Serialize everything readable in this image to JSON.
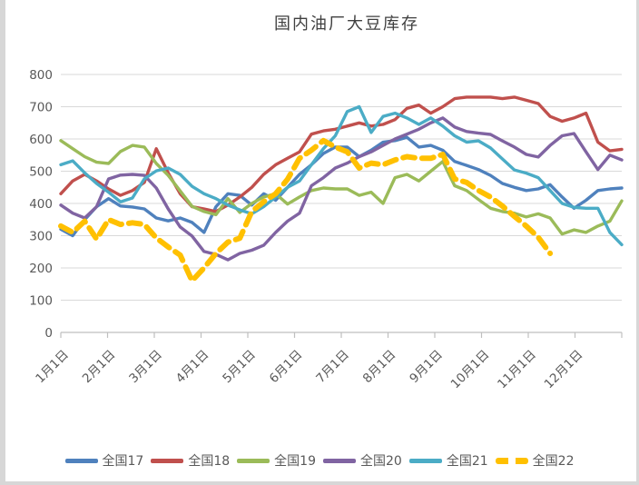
{
  "window": {
    "background": "#ffffff",
    "edge_color": "#d7d7d7"
  },
  "colors": {
    "title_text": "#3f3f3f",
    "axis_text": "#595959",
    "gridline": "#d9d9d9",
    "axis_line": "#bfbfbf"
  },
  "chart_data": {
    "type": "line",
    "title": "国内油厂大豆库存",
    "xlabel": "",
    "ylabel": "",
    "ylim": [
      0,
      800
    ],
    "y_ticks": [
      0,
      100,
      200,
      300,
      400,
      500,
      600,
      700,
      800
    ],
    "x_tick_labels": [
      "1月1日",
      "2月1日",
      "3月1日",
      "4月1日",
      "5月1日",
      "6月1日",
      "7月1日",
      "8月1日",
      "9月1日",
      "10月1日",
      "11月1日",
      "12月1日"
    ],
    "x_unit": "weekly points, 4 per month, Jan 1 to late Dec",
    "grid": "horizontal",
    "legend_position": "bottom",
    "series": [
      {
        "name": "全国17",
        "key": "17",
        "color": "#4f81bd",
        "style": "solid",
        "values": [
          320,
          300,
          350,
          390,
          415,
          392,
          389,
          383,
          355,
          346,
          355,
          341,
          310,
          390,
          430,
          425,
          395,
          430,
          410,
          450,
          490,
          520,
          555,
          575,
          575,
          545,
          565,
          590,
          595,
          605,
          575,
          580,
          565,
          530,
          518,
          505,
          487,
          462,
          450,
          440,
          445,
          458,
          420,
          385,
          410,
          440,
          445,
          448
        ]
      },
      {
        "name": "全国18",
        "key": "18",
        "color": "#c0504d",
        "style": "solid",
        "values": [
          430,
          470,
          490,
          470,
          445,
          425,
          440,
          465,
          570,
          495,
          430,
          390,
          383,
          375,
          395,
          420,
          450,
          490,
          520,
          540,
          560,
          615,
          625,
          630,
          640,
          650,
          640,
          645,
          660,
          695,
          705,
          680,
          700,
          725,
          730,
          730,
          730,
          725,
          730,
          720,
          710,
          670,
          655,
          665,
          680,
          590,
          563,
          568
        ]
      },
      {
        "name": "全国19",
        "key": "19",
        "color": "#9bbb59",
        "style": "solid",
        "values": [
          595,
          570,
          545,
          528,
          524,
          561,
          580,
          575,
          524,
          487,
          439,
          391,
          375,
          365,
          415,
          372,
          400,
          420,
          430,
          398,
          420,
          440,
          448,
          445,
          445,
          425,
          435,
          400,
          480,
          490,
          470,
          500,
          530,
          455,
          440,
          412,
          385,
          375,
          370,
          358,
          368,
          355,
          305,
          318,
          310,
          330,
          345,
          408
        ]
      },
      {
        "name": "全国20",
        "key": "20",
        "color": "#8064a2",
        "style": "solid",
        "values": [
          395,
          370,
          355,
          390,
          476,
          488,
          490,
          487,
          448,
          383,
          327,
          299,
          251,
          242,
          225,
          245,
          255,
          270,
          310,
          345,
          370,
          455,
          480,
          510,
          525,
          545,
          560,
          580,
          600,
          615,
          630,
          650,
          665,
          637,
          623,
          618,
          614,
          594,
          575,
          552,
          544,
          580,
          610,
          617,
          560,
          505,
          550,
          535
        ]
      },
      {
        "name": "全国21",
        "key": "21",
        "color": "#4bacc6",
        "style": "solid",
        "values": [
          520,
          532,
          495,
          462,
          435,
          405,
          417,
          476,
          501,
          510,
          490,
          453,
          430,
          415,
          395,
          380,
          368,
          390,
          420,
          450,
          470,
          520,
          570,
          610,
          685,
          700,
          620,
          670,
          680,
          665,
          645,
          665,
          640,
          610,
          590,
          594,
          572,
          538,
          504,
          494,
          480,
          440,
          400,
          388,
          385,
          385,
          310,
          272
        ]
      },
      {
        "name": "全国22",
        "key": "22",
        "color": "#ffc000",
        "style": "dashed",
        "values": [
          330,
          310,
          345,
          290,
          350,
          335,
          340,
          335,
          293,
          265,
          240,
          160,
          200,
          245,
          280,
          292,
          375,
          405,
          430,
          475,
          540,
          565,
          595,
          575,
          560,
          510,
          525,
          520,
          535,
          545,
          540,
          540,
          552,
          476,
          465,
          440,
          420,
          392,
          360,
          330,
          295,
          245,
          null,
          null,
          null,
          null,
          null,
          null
        ]
      }
    ]
  }
}
